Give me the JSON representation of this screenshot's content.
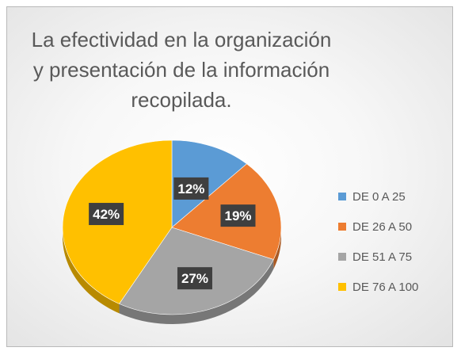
{
  "chart_data": {
    "type": "pie",
    "title": "La efectividad en la organización\ny presentación de la información\nrecopilada.",
    "categories": [
      "DE 0 A 25",
      "DE 26 A 50",
      "DE 51 A 75",
      "DE 76 A 100"
    ],
    "values": [
      12,
      19,
      27,
      42
    ],
    "labels": [
      "12%",
      "19%",
      "27%",
      "42%"
    ],
    "colors": [
      "#5b9bd5",
      "#ed7d31",
      "#a5a5a5",
      "#ffc000"
    ],
    "style": "3d",
    "legend_position": "right"
  }
}
